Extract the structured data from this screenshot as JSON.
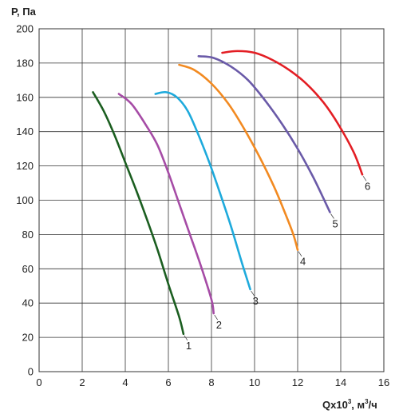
{
  "chart_data": {
    "type": "line",
    "title": "",
    "ylabel": "P, Па",
    "xlabel": {
      "main": "Qx10",
      "sup": "3",
      "sep": ",",
      "unit": " м",
      "unit_sup": "3",
      "unit_rest": "/ч"
    },
    "xlim": [
      0,
      16
    ],
    "ylim": [
      0,
      200
    ],
    "xticks": [
      0,
      2,
      4,
      6,
      8,
      10,
      12,
      14,
      16
    ],
    "yticks": [
      0,
      20,
      40,
      60,
      80,
      100,
      120,
      140,
      160,
      180,
      200
    ],
    "grid": true,
    "legend": "none",
    "series": [
      {
        "label": "1",
        "color": "#1b5e20",
        "x": [
          2.5,
          3.0,
          3.5,
          4.0,
          4.5,
          5.0,
          5.5,
          6.0,
          6.5,
          6.7
        ],
        "y": [
          163,
          152,
          138,
          122,
          106,
          89,
          71,
          51,
          32,
          22
        ]
      },
      {
        "label": "2",
        "color": "#a64ca6",
        "x": [
          3.7,
          4.3,
          5.0,
          5.5,
          6.0,
          6.5,
          7.0,
          7.5,
          8.0,
          8.1
        ],
        "y": [
          162,
          156,
          143,
          132,
          116,
          98,
          80,
          62,
          42,
          34
        ]
      },
      {
        "label": "3",
        "color": "#1eaadc",
        "x": [
          5.4,
          5.9,
          6.4,
          6.9,
          7.4,
          7.9,
          8.4,
          8.9,
          9.4,
          9.8
        ],
        "y": [
          162,
          163,
          160,
          152,
          138,
          122,
          104,
          85,
          64,
          48
        ]
      },
      {
        "label": "4",
        "color": "#f28a21",
        "x": [
          6.5,
          7.2,
          8.0,
          8.8,
          9.5,
          10.2,
          10.9,
          11.4,
          11.8,
          12.0
        ],
        "y": [
          179,
          176,
          168,
          156,
          142,
          126,
          108,
          93,
          80,
          71
        ]
      },
      {
        "label": "5",
        "color": "#6a5aa8",
        "x": [
          7.4,
          8.1,
          8.9,
          9.7,
          10.5,
          11.3,
          12.0,
          12.7,
          13.2,
          13.5
        ],
        "y": [
          184,
          183,
          178,
          170,
          158,
          144,
          130,
          114,
          101,
          93
        ]
      },
      {
        "label": "6",
        "color": "#e31e24",
        "x": [
          8.5,
          9.2,
          10.0,
          10.8,
          11.6,
          12.4,
          13.2,
          13.9,
          14.6,
          15.0
        ],
        "y": [
          186,
          187,
          186,
          182,
          176,
          168,
          157,
          144,
          128,
          115
        ]
      }
    ]
  }
}
